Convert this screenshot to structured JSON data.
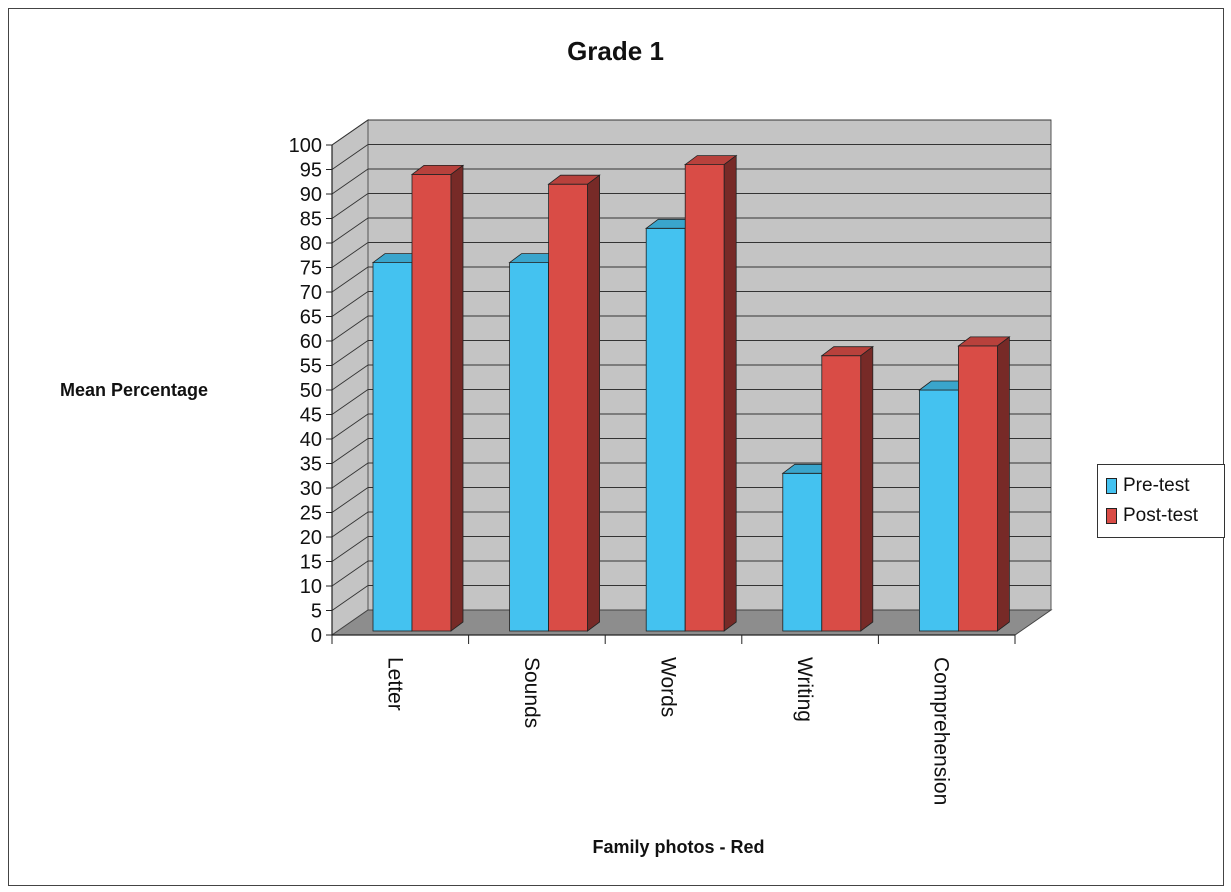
{
  "chart_data": {
    "type": "bar",
    "title": "Grade 1",
    "xlabel": "Family photos - Red",
    "ylabel": "Mean Percentage",
    "categories": [
      "Letter",
      "Sounds",
      "Words",
      "Writing",
      "Comprehension"
    ],
    "series": [
      {
        "name": "Pre-test",
        "values": [
          76,
          76,
          83,
          33,
          50
        ],
        "color": "#44c2f0"
      },
      {
        "name": "Post-test",
        "values": [
          94,
          92,
          96,
          57,
          59
        ],
        "color": "#d94c46"
      }
    ],
    "ylim": [
      0,
      100
    ],
    "yticks": [
      "0",
      "5",
      "10",
      "15",
      "20",
      "25",
      "30",
      "35",
      "40",
      "45",
      "50",
      "55",
      "60",
      "65",
      "70",
      "75",
      "80",
      "85",
      "90",
      "95",
      "100"
    ],
    "grid": true,
    "legend_position": "right",
    "three_d": true
  }
}
